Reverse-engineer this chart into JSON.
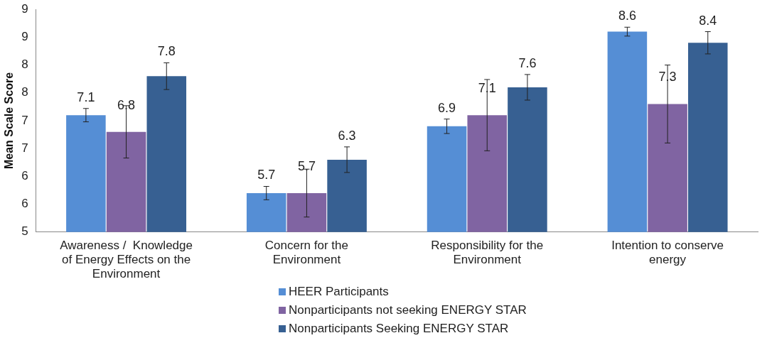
{
  "chart_data": {
    "type": "bar",
    "ylabel": "Mean Scale Score",
    "categories": [
      "Awareness /  Knowledge of Energy Effects on the Environment",
      "Concern for the Environment",
      "Responsibility for the Environment",
      "Intention to conserve energy"
    ],
    "series": [
      {
        "name": "HEER Participants",
        "color": "#558ed5",
        "values": [
          7.1,
          5.7,
          6.9,
          8.6
        ],
        "errors": [
          0.12,
          0.12,
          0.13,
          0.08
        ]
      },
      {
        "name": "Nonparticipants not seeking ENERGY STAR",
        "color": "#8064a2",
        "values": [
          6.8,
          5.7,
          7.1,
          7.3
        ],
        "errors": [
          0.47,
          0.43,
          0.64,
          0.7
        ]
      },
      {
        "name": "Nonparticipants Seeking ENERGY STAR",
        "color": "#376092",
        "values": [
          7.8,
          6.3,
          7.6,
          8.4
        ],
        "errors": [
          0.24,
          0.23,
          0.23,
          0.2
        ]
      }
    ],
    "ylim": [
      5,
      9
    ],
    "yticks": [
      5,
      {
        "value": 5.5,
        "label": "6"
      },
      6,
      {
        "value": 6.5,
        "label": "7"
      },
      7,
      {
        "value": 7.5,
        "label": "8"
      },
      8,
      {
        "value": 8.5,
        "label": "9"
      },
      9
    ],
    "data_labels": true,
    "legend": "bottom",
    "grid": false
  }
}
